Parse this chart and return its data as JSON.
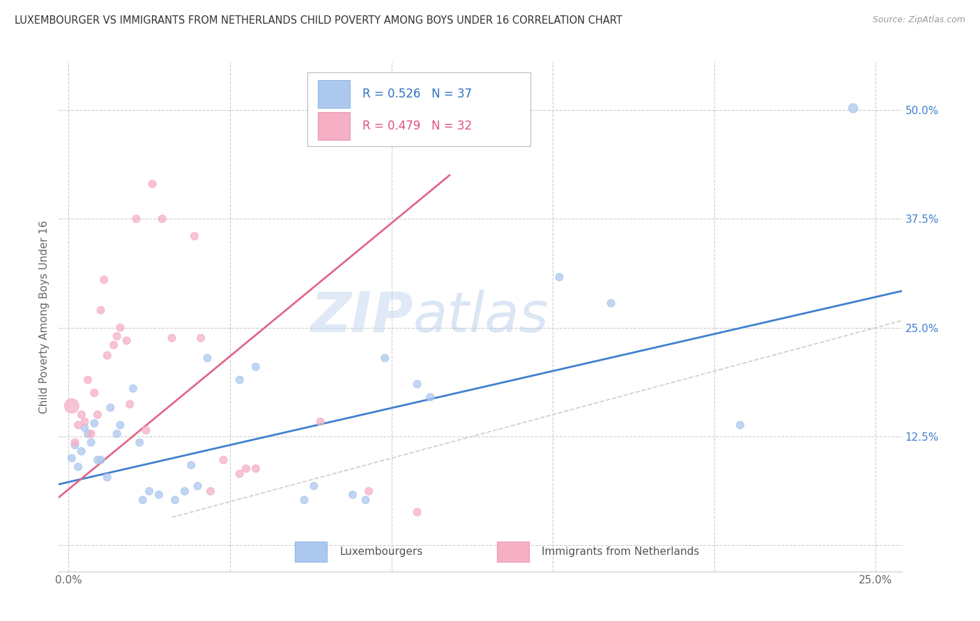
{
  "title": "LUXEMBOURGER VS IMMIGRANTS FROM NETHERLANDS CHILD POVERTY AMONG BOYS UNDER 16 CORRELATION CHART",
  "source": "Source: ZipAtlas.com",
  "ylabel": "Child Poverty Among Boys Under 16",
  "xlim": [
    -0.003,
    0.258
  ],
  "ylim": [
    -0.03,
    0.555
  ],
  "xticks": [
    0.0,
    0.05,
    0.1,
    0.15,
    0.2,
    0.25
  ],
  "xticklabels": [
    "0.0%",
    "",
    "",
    "",
    "",
    "25.0%"
  ],
  "yticks": [
    0.0,
    0.125,
    0.25,
    0.375,
    0.5
  ],
  "right_yticklabels": [
    "",
    "12.5%",
    "25.0%",
    "37.5%",
    "50.0%"
  ],
  "r_blue": 0.526,
  "n_blue": 37,
  "r_pink": 0.479,
  "n_pink": 32,
  "blue_color": "#adc8ee",
  "pink_color": "#f5b0c5",
  "blue_line_color": "#4080d0",
  "pink_line_color": "#e06888",
  "blue_scatter": [
    [
      0.001,
      0.1
    ],
    [
      0.002,
      0.115
    ],
    [
      0.003,
      0.09
    ],
    [
      0.004,
      0.108
    ],
    [
      0.005,
      0.135
    ],
    [
      0.006,
      0.128
    ],
    [
      0.007,
      0.118
    ],
    [
      0.008,
      0.14
    ],
    [
      0.009,
      0.098
    ],
    [
      0.01,
      0.098
    ],
    [
      0.012,
      0.078
    ],
    [
      0.013,
      0.158
    ],
    [
      0.015,
      0.128
    ],
    [
      0.016,
      0.138
    ],
    [
      0.02,
      0.18
    ],
    [
      0.022,
      0.118
    ],
    [
      0.023,
      0.052
    ],
    [
      0.025,
      0.062
    ],
    [
      0.028,
      0.058
    ],
    [
      0.033,
      0.052
    ],
    [
      0.036,
      0.062
    ],
    [
      0.038,
      0.092
    ],
    [
      0.04,
      0.068
    ],
    [
      0.043,
      0.215
    ],
    [
      0.053,
      0.19
    ],
    [
      0.058,
      0.205
    ],
    [
      0.073,
      0.052
    ],
    [
      0.076,
      0.068
    ],
    [
      0.088,
      0.058
    ],
    [
      0.092,
      0.052
    ],
    [
      0.098,
      0.215
    ],
    [
      0.108,
      0.185
    ],
    [
      0.112,
      0.17
    ],
    [
      0.152,
      0.308
    ],
    [
      0.168,
      0.278
    ],
    [
      0.208,
      0.138
    ],
    [
      0.243,
      0.502
    ]
  ],
  "pink_scatter": [
    [
      0.001,
      0.16
    ],
    [
      0.002,
      0.118
    ],
    [
      0.003,
      0.138
    ],
    [
      0.004,
      0.15
    ],
    [
      0.005,
      0.142
    ],
    [
      0.006,
      0.19
    ],
    [
      0.007,
      0.128
    ],
    [
      0.008,
      0.175
    ],
    [
      0.009,
      0.15
    ],
    [
      0.01,
      0.27
    ],
    [
      0.011,
      0.305
    ],
    [
      0.012,
      0.218
    ],
    [
      0.014,
      0.23
    ],
    [
      0.015,
      0.24
    ],
    [
      0.016,
      0.25
    ],
    [
      0.018,
      0.235
    ],
    [
      0.019,
      0.162
    ],
    [
      0.021,
      0.375
    ],
    [
      0.024,
      0.132
    ],
    [
      0.026,
      0.415
    ],
    [
      0.029,
      0.375
    ],
    [
      0.032,
      0.238
    ],
    [
      0.039,
      0.355
    ],
    [
      0.041,
      0.238
    ],
    [
      0.044,
      0.062
    ],
    [
      0.048,
      0.098
    ],
    [
      0.053,
      0.082
    ],
    [
      0.055,
      0.088
    ],
    [
      0.058,
      0.088
    ],
    [
      0.078,
      0.142
    ],
    [
      0.093,
      0.062
    ],
    [
      0.108,
      0.038
    ]
  ],
  "blue_dot_sizes": [
    60,
    60,
    60,
    60,
    60,
    60,
    60,
    60,
    60,
    60,
    60,
    60,
    60,
    60,
    60,
    60,
    60,
    60,
    60,
    60,
    60,
    60,
    60,
    60,
    60,
    60,
    60,
    60,
    60,
    60,
    60,
    60,
    60,
    60,
    60,
    60,
    90
  ],
  "pink_dot_sizes": [
    220,
    60,
    60,
    60,
    60,
    60,
    60,
    60,
    60,
    60,
    60,
    60,
    60,
    60,
    60,
    60,
    60,
    60,
    60,
    60,
    60,
    60,
    60,
    60,
    60,
    60,
    60,
    60,
    60,
    60,
    60,
    60
  ],
  "blue_line_x": [
    -0.003,
    0.258
  ],
  "blue_line_y": [
    0.07,
    0.292
  ],
  "pink_line_x": [
    -0.003,
    0.118
  ],
  "pink_line_y": [
    0.055,
    0.425
  ],
  "diag_line_x": [
    0.032,
    0.258
  ],
  "diag_line_y": [
    0.032,
    0.258
  ],
  "watermark_zip": "ZIP",
  "watermark_atlas": "atlas",
  "background_color": "#ffffff",
  "grid_color": "#cccccc",
  "legend_blue_text": "R = 0.526   N = 37",
  "legend_pink_text": "R = 0.479   N = 32",
  "bottom_legend_blue": "Luxembourgers",
  "bottom_legend_pink": "Immigrants from Netherlands"
}
